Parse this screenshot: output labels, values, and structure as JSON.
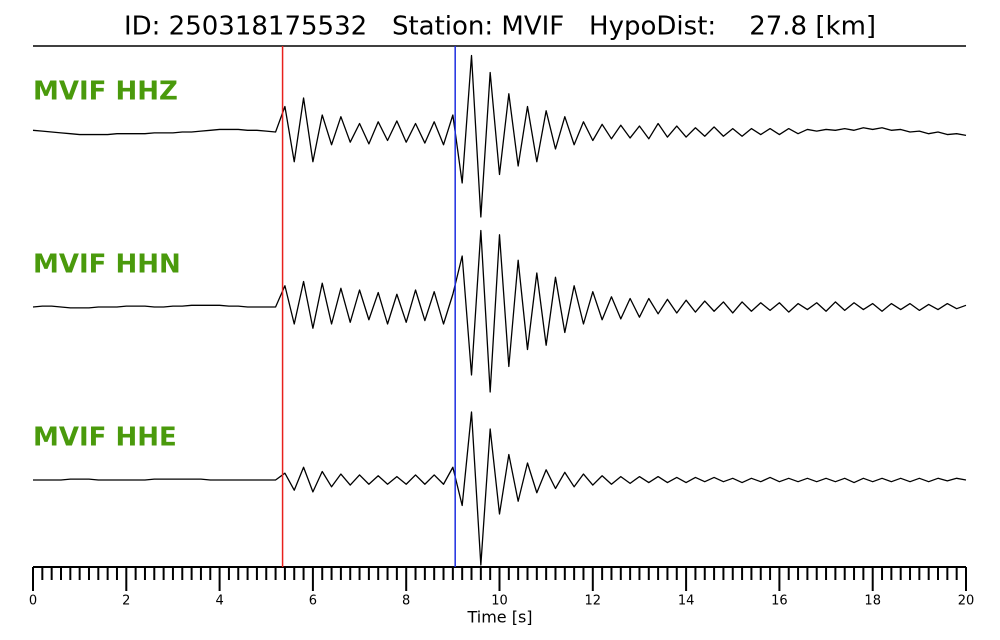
{
  "chart_data": {
    "type": "seismogram",
    "title": "ID: 250318175532   Station: MVIF   HypoDist:    27.8 [km]",
    "xlabel": "Time [s]",
    "xlim": [
      0,
      20
    ],
    "xticks": [
      0,
      2,
      4,
      6,
      8,
      10,
      12,
      14,
      16,
      18,
      20
    ],
    "xminor_per_major": 10,
    "ylim": [
      -1,
      1
    ],
    "label_color": "#4a9a0c",
    "picks": [
      {
        "time": 5.35,
        "color": "#e8201c"
      },
      {
        "time": 9.05,
        "color": "#1c2ee0"
      }
    ],
    "x": [
      0,
      0.2,
      0.4,
      0.6,
      0.8,
      1,
      1.2,
      1.4,
      1.6,
      1.8,
      2,
      2.2,
      2.4,
      2.6,
      2.8,
      3,
      3.2,
      3.4,
      3.6,
      3.8,
      4,
      4.2,
      4.4,
      4.6,
      4.8,
      5,
      5.2,
      5.4,
      5.6,
      5.8,
      6,
      6.2,
      6.4,
      6.6,
      6.8,
      7,
      7.2,
      7.4,
      7.6,
      7.8,
      8,
      8.2,
      8.4,
      8.6,
      8.8,
      9,
      9.2,
      9.4,
      9.6,
      9.8,
      10,
      10.2,
      10.4,
      10.6,
      10.8,
      11,
      11.2,
      11.4,
      11.6,
      11.8,
      12,
      12.2,
      12.4,
      12.6,
      12.8,
      13,
      13.2,
      13.4,
      13.6,
      13.8,
      14,
      14.2,
      14.4,
      14.6,
      14.8,
      15,
      15.2,
      15.4,
      15.6,
      15.8,
      16,
      16.2,
      16.4,
      16.6,
      16.8,
      17,
      17.2,
      17.4,
      17.6,
      17.8,
      18,
      18.2,
      18.4,
      18.6,
      18.8,
      19,
      19.2,
      19.4,
      19.6,
      19.8,
      20
    ],
    "series": [
      {
        "name": "MVIF HHZ",
        "color": "#000000",
        "values": [
          0.02,
          0.01,
          0,
          -0.01,
          -0.02,
          -0.03,
          -0.03,
          -0.03,
          -0.03,
          -0.02,
          -0.02,
          -0.02,
          -0.02,
          -0.01,
          -0.01,
          -0.01,
          0,
          0,
          0.01,
          0.02,
          0.03,
          0.03,
          0.03,
          0.02,
          0.02,
          0.01,
          0,
          0.3,
          -0.35,
          0.4,
          -0.35,
          0.2,
          -0.15,
          0.18,
          -0.12,
          0.1,
          -0.14,
          0.12,
          -0.1,
          0.13,
          -0.12,
          0.1,
          -0.13,
          0.12,
          -0.15,
          0.2,
          -0.6,
          0.9,
          -1.0,
          0.7,
          -0.5,
          0.45,
          -0.4,
          0.3,
          -0.35,
          0.25,
          -0.2,
          0.18,
          -0.15,
          0.12,
          -0.1,
          0.09,
          -0.08,
          0.08,
          -0.07,
          0.07,
          -0.08,
          0.1,
          -0.06,
          0.07,
          -0.06,
          0.05,
          -0.05,
          0.06,
          -0.05,
          0.04,
          -0.05,
          0.04,
          -0.03,
          0.04,
          -0.03,
          0.04,
          -0.02,
          0.03,
          0.01,
          0.03,
          0.02,
          0.04,
          0.02,
          0.05,
          0.03,
          0.05,
          0.02,
          0.03,
          0,
          0.01,
          -0.02,
          0,
          -0.03,
          -0.02,
          -0.04
        ]
      },
      {
        "name": "MVIF HHN",
        "color": "#000000",
        "values": [
          0,
          0.01,
          0.01,
          0,
          -0.01,
          -0.01,
          -0.01,
          0,
          0,
          0,
          0.01,
          0.01,
          0.01,
          0,
          0,
          0.01,
          0.01,
          0.02,
          0.02,
          0.02,
          0.02,
          0.01,
          0.01,
          0,
          0,
          0,
          0,
          0.25,
          -0.2,
          0.3,
          -0.25,
          0.28,
          -0.2,
          0.22,
          -0.18,
          0.2,
          -0.15,
          0.17,
          -0.2,
          0.15,
          -0.18,
          0.2,
          -0.16,
          0.18,
          -0.2,
          0.15,
          0.6,
          -0.8,
          0.9,
          -1.0,
          0.85,
          -0.7,
          0.55,
          -0.5,
          0.4,
          -0.45,
          0.35,
          -0.3,
          0.25,
          -0.2,
          0.18,
          -0.15,
          0.12,
          -0.14,
          0.1,
          -0.12,
          0.1,
          -0.08,
          0.09,
          -0.07,
          0.08,
          -0.06,
          0.07,
          -0.05,
          0.06,
          -0.07,
          0.06,
          -0.05,
          0.05,
          -0.04,
          0.05,
          -0.06,
          0.04,
          -0.03,
          0.05,
          -0.05,
          0.06,
          -0.04,
          0.05,
          -0.03,
          0.04,
          -0.05,
          0.04,
          -0.03,
          0.04,
          -0.04,
          0.03,
          -0.03,
          0.04,
          -0.02,
          0.02
        ]
      },
      {
        "name": "MVIF HHE",
        "color": "#000000",
        "values": [
          0,
          0,
          0,
          0,
          0.01,
          0.01,
          0.01,
          0,
          0,
          0,
          0,
          0,
          0,
          0.01,
          0.01,
          0.01,
          0.01,
          0.01,
          0.01,
          0,
          0,
          0,
          0,
          0,
          0,
          0,
          0,
          0.08,
          -0.12,
          0.15,
          -0.14,
          0.1,
          -0.08,
          0.07,
          -0.06,
          0.06,
          -0.05,
          0.05,
          -0.05,
          0.04,
          -0.05,
          0.06,
          -0.05,
          0.06,
          -0.05,
          0.15,
          -0.3,
          0.8,
          -1.0,
          0.6,
          -0.4,
          0.3,
          -0.25,
          0.2,
          -0.15,
          0.12,
          -0.1,
          0.09,
          -0.08,
          0.07,
          -0.06,
          0.05,
          -0.05,
          0.04,
          -0.04,
          0.04,
          -0.03,
          0.04,
          -0.03,
          0.03,
          -0.03,
          0.03,
          -0.02,
          0.03,
          -0.02,
          0.02,
          -0.03,
          0.02,
          -0.02,
          0.03,
          -0.02,
          0.02,
          -0.02,
          0.02,
          -0.02,
          0.02,
          -0.02,
          0.02,
          -0.03,
          0.02,
          -0.02,
          0.02,
          -0.02,
          0.02,
          -0.02,
          0.02,
          -0.02,
          0.02,
          -0.01,
          0.02,
          0
        ]
      }
    ]
  }
}
